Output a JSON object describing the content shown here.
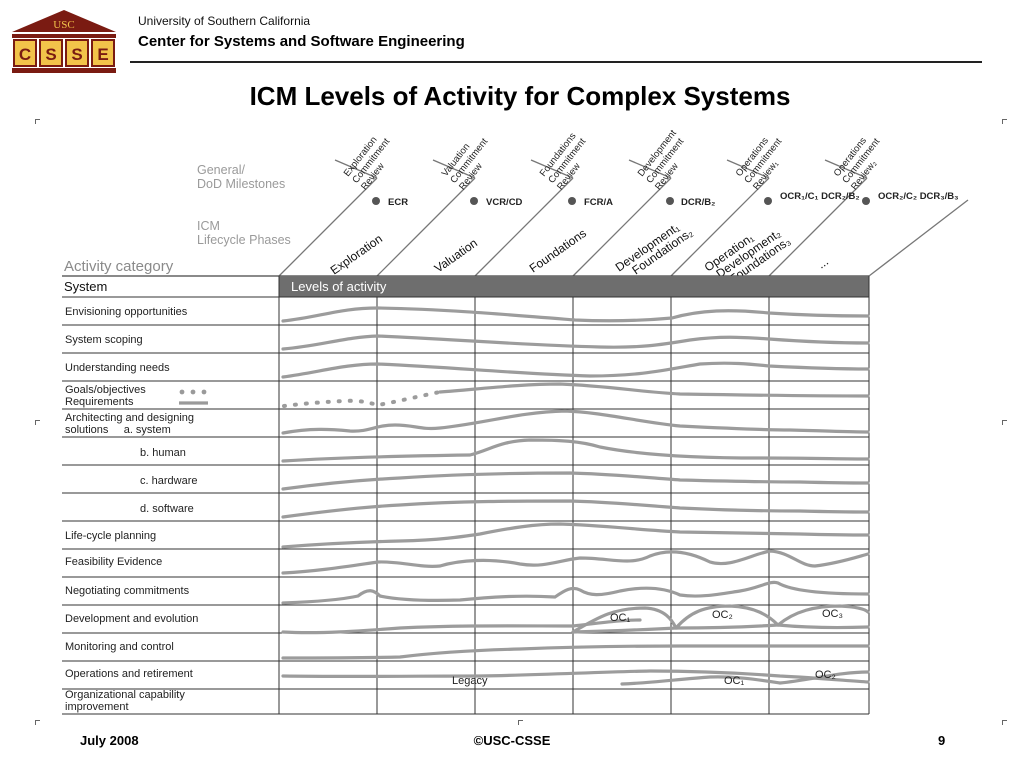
{
  "header": {
    "logo_text": "USC",
    "logo_letters": [
      "C",
      "S",
      "S",
      "E"
    ],
    "org_line1": "University of Southern California",
    "org_line2": "Center for Systems and Software Engineering"
  },
  "slide_title": "ICM Levels of Activity for Complex Systems",
  "figure": {
    "general_milestones_label": [
      "General/",
      "DoD Milestones"
    ],
    "icm_phases_label": [
      "ICM",
      "Lifecycle Phases"
    ],
    "activity_category_label": "Activity category",
    "system_label": "System",
    "levels_label": "Levels of activity",
    "reviews": [
      {
        "lines": [
          "Exploration",
          "Commitment",
          "Review"
        ],
        "code": "ECR"
      },
      {
        "lines": [
          "Valuation",
          "Commitment",
          "Review"
        ],
        "code": "VCR/CD"
      },
      {
        "lines": [
          "Foundations",
          "Commitment",
          "Review"
        ],
        "code": "FCR/A"
      },
      {
        "lines": [
          "Development",
          "Commitment",
          "Review"
        ],
        "code": "DCR/B₂"
      },
      {
        "lines": [
          "Operations",
          "Commitment",
          "Review₁"
        ],
        "code": "OCR₁/C₁ DCR₂/B₂"
      },
      {
        "lines": [
          "Operations",
          "Commitment",
          "Review₂"
        ],
        "code": "OCR₂/C₂ DCR₃/B₃"
      }
    ],
    "phases": [
      [
        "Exploration"
      ],
      [
        "Valuation"
      ],
      [
        "Foundations"
      ],
      [
        "Development₁",
        "Foundations₂"
      ],
      [
        "Operation₁",
        "Development₂",
        "Foundations₃"
      ],
      [
        "..."
      ]
    ],
    "rows": [
      [
        "Envisioning opportunities"
      ],
      [
        "System scoping"
      ],
      [
        "Understanding needs"
      ],
      [
        "Goals/objectives",
        "Requirements"
      ],
      [
        "Architecting and designing",
        "solutions     a. system"
      ],
      [
        "b. human"
      ],
      [
        "c. hardware"
      ],
      [
        "d. software"
      ],
      [
        "Life-cycle planning"
      ],
      [
        "Feasibility Evidence"
      ],
      [
        "Negotiating commitments"
      ],
      [
        "Development and evolution"
      ],
      [
        "Monitoring and control"
      ],
      [
        "Operations and retirement"
      ],
      [
        "Organizational capability",
        "improvement"
      ]
    ],
    "curve_labels": [
      "OC₁",
      "OC₂",
      "OC₃",
      "Legacy",
      "OC₁",
      "OC₂"
    ]
  },
  "footer": {
    "date": "July 2008",
    "copyright": "©USC-CSSE",
    "page": "9"
  }
}
